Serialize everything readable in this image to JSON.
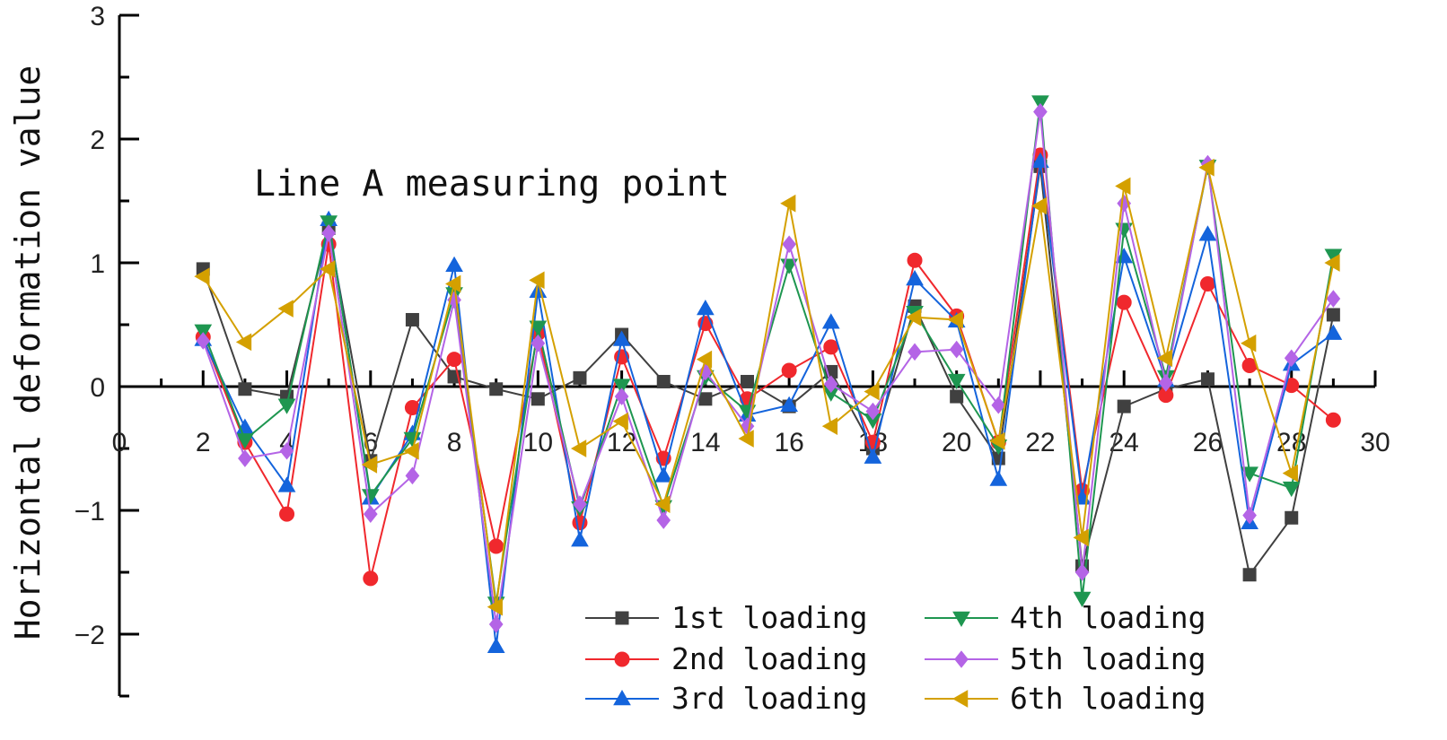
{
  "chart_data": {
    "type": "line",
    "title": "",
    "xlabel": "",
    "ylabel": "Horizontal deformation value",
    "annotation": "Line A measuring point",
    "xlim": [
      0,
      30
    ],
    "ylim": [
      -2.5,
      3
    ],
    "x_ticks": [
      0,
      2,
      4,
      6,
      8,
      10,
      12,
      14,
      16,
      18,
      20,
      22,
      24,
      26,
      28,
      30
    ],
    "y_ticks": [
      -2,
      -1,
      0,
      1,
      2,
      3
    ],
    "grid": false,
    "legend_position": "bottom-right",
    "x": [
      2,
      3,
      4,
      5,
      6,
      7,
      8,
      9,
      10,
      11,
      12,
      13,
      14,
      15,
      16,
      17,
      18,
      19,
      20,
      21,
      22,
      23,
      24,
      25,
      26,
      27,
      28,
      29
    ],
    "series": [
      {
        "name": "1st loading",
        "color": "#404040",
        "marker": "square",
        "values": [
          0.95,
          -0.02,
          -0.08,
          1.28,
          -0.6,
          0.54,
          0.08,
          -0.02,
          -0.1,
          0.07,
          0.42,
          0.04,
          -0.1,
          0.04,
          -0.16,
          0.12,
          -0.5,
          0.65,
          -0.08,
          -0.58,
          1.78,
          -1.45,
          -0.16,
          -0.02,
          0.06,
          -1.52,
          -1.06,
          0.58
        ]
      },
      {
        "name": "2nd loading",
        "color": "#f0282d",
        "marker": "circle",
        "values": [
          0.4,
          -0.45,
          -1.03,
          1.15,
          -1.55,
          -0.17,
          0.22,
          -1.29,
          0.43,
          -1.1,
          0.24,
          -0.58,
          0.51,
          -0.1,
          0.13,
          0.32,
          -0.45,
          1.02,
          0.57,
          -0.45,
          1.87,
          -0.84,
          0.68,
          -0.07,
          0.83,
          0.17,
          0.01,
          -0.27
        ]
      },
      {
        "name": "3rd loading",
        "color": "#1464dc",
        "marker": "triangle-up",
        "values": [
          0.38,
          -0.33,
          -0.8,
          1.35,
          -0.9,
          -0.38,
          0.98,
          -2.1,
          0.77,
          -1.24,
          0.38,
          -0.72,
          0.63,
          -0.23,
          -0.15,
          0.52,
          -0.57,
          0.87,
          0.53,
          -0.75,
          1.82,
          -0.9,
          1.05,
          0.05,
          1.23,
          -1.1,
          0.18,
          0.43
        ]
      },
      {
        "name": "4th loading",
        "color": "#1e9650",
        "marker": "triangle-down",
        "values": [
          0.45,
          -0.43,
          -0.15,
          1.33,
          -0.88,
          -0.42,
          0.75,
          -1.75,
          0.48,
          -0.98,
          0.01,
          -0.97,
          0.08,
          -0.2,
          0.98,
          -0.05,
          -0.27,
          0.6,
          0.05,
          -0.48,
          2.3,
          -1.71,
          1.27,
          0.08,
          1.78,
          -0.7,
          -0.82,
          1.06
        ]
      },
      {
        "name": "5th loading",
        "color": "#b464e6",
        "marker": "diamond",
        "values": [
          0.37,
          -0.58,
          -0.52,
          1.24,
          -1.03,
          -0.72,
          0.7,
          -1.92,
          0.35,
          -0.95,
          -0.08,
          -1.08,
          0.12,
          -0.32,
          1.15,
          0.02,
          -0.2,
          0.28,
          0.3,
          -0.15,
          2.22,
          -1.5,
          1.48,
          0.03,
          1.8,
          -1.04,
          0.23,
          0.71
        ]
      },
      {
        "name": "6th loading",
        "color": "#d4a000",
        "marker": "triangle-left",
        "values": [
          0.89,
          0.36,
          0.63,
          0.95,
          -0.63,
          -0.52,
          0.83,
          -1.78,
          0.86,
          -0.5,
          -0.28,
          -0.95,
          0.22,
          -0.42,
          1.48,
          -0.32,
          -0.04,
          0.56,
          0.54,
          -0.44,
          1.46,
          -1.22,
          1.62,
          0.23,
          1.77,
          0.35,
          -0.7,
          1.0
        ]
      }
    ]
  }
}
